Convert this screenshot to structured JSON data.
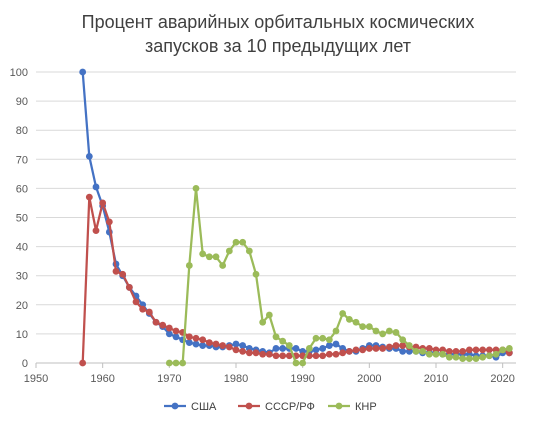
{
  "chart_data": {
    "type": "line",
    "title_lines": [
      "Процент аварийных орбитальных космических",
      "запусков за 10 предыдущих лет"
    ],
    "xlabel": "",
    "ylabel": "",
    "xlim": [
      1950,
      2022
    ],
    "ylim": [
      0,
      100
    ],
    "x_ticks": [
      1950,
      1960,
      1970,
      1980,
      1990,
      2000,
      2010,
      2020
    ],
    "y_ticks": [
      0,
      10,
      20,
      30,
      40,
      50,
      60,
      70,
      80,
      90,
      100
    ],
    "grid": "horizontal",
    "legend": "bottom",
    "series": [
      {
        "name": "США",
        "color": "#4472C4",
        "x": [
          1957,
          1958,
          1959,
          1960,
          1961,
          1962,
          1963,
          1964,
          1965,
          1966,
          1967,
          1968,
          1969,
          1970,
          1971,
          1972,
          1973,
          1974,
          1975,
          1976,
          1977,
          1978,
          1979,
          1980,
          1981,
          1982,
          1983,
          1984,
          1985,
          1986,
          1987,
          1988,
          1989,
          1990,
          1991,
          1992,
          1993,
          1994,
          1995,
          1996,
          1997,
          1998,
          1999,
          2000,
          2001,
          2002,
          2003,
          2004,
          2005,
          2006,
          2007,
          2008,
          2009,
          2010,
          2011,
          2012,
          2013,
          2014,
          2015,
          2016,
          2017,
          2018,
          2019,
          2020,
          2021
        ],
        "y": [
          100,
          71,
          60.5,
          54,
          45,
          34,
          30,
          26,
          23,
          20,
          17,
          14,
          12.5,
          10,
          9,
          8,
          7,
          6.5,
          6,
          6,
          5.5,
          5.5,
          6,
          6.5,
          6,
          5,
          4.5,
          4,
          3.5,
          5,
          5,
          5,
          5,
          4,
          4,
          4.5,
          5,
          6,
          6.5,
          5,
          4,
          4,
          5,
          6,
          6,
          5.5,
          5,
          5,
          4,
          4,
          4,
          3.5,
          3.5,
          3.5,
          3,
          3,
          3,
          3,
          3,
          2.5,
          2.5,
          2.5,
          2,
          3.5,
          3.5
        ]
      },
      {
        "name": "СССР/РФ",
        "color": "#C0504D",
        "x": [
          1957,
          1958,
          1959,
          1960,
          1961,
          1962,
          1963,
          1964,
          1965,
          1966,
          1967,
          1968,
          1969,
          1970,
          1971,
          1972,
          1973,
          1974,
          1975,
          1976,
          1977,
          1978,
          1979,
          1980,
          1981,
          1982,
          1983,
          1984,
          1985,
          1986,
          1987,
          1988,
          1989,
          1990,
          1991,
          1992,
          1993,
          1994,
          1995,
          1996,
          1997,
          1998,
          1999,
          2000,
          2001,
          2002,
          2003,
          2004,
          2005,
          2006,
          2007,
          2008,
          2009,
          2010,
          2011,
          2012,
          2013,
          2014,
          2015,
          2016,
          2017,
          2018,
          2019,
          2020,
          2021
        ],
        "y": [
          0,
          57,
          45.5,
          55,
          48.5,
          31.5,
          30.5,
          26,
          21,
          18.5,
          17.5,
          14,
          13,
          12,
          11,
          10.5,
          9,
          8.5,
          8,
          7,
          6.5,
          6,
          5.5,
          4.5,
          4,
          3.5,
          3.5,
          3,
          3,
          2.5,
          2.5,
          2.5,
          2.5,
          2.5,
          2.5,
          2.5,
          2.5,
          3,
          3,
          3.5,
          4,
          4.5,
          4.5,
          5,
          5,
          5,
          5.5,
          6,
          6,
          5.5,
          5.5,
          5,
          5,
          4.5,
          4.5,
          4,
          4,
          4,
          4.5,
          4.5,
          4.5,
          4.5,
          4.5,
          4.5,
          3.5
        ]
      },
      {
        "name": "КНР",
        "color": "#9BBB59",
        "x": [
          1970,
          1971,
          1972,
          1973,
          1974,
          1975,
          1976,
          1977,
          1978,
          1979,
          1980,
          1981,
          1982,
          1983,
          1984,
          1985,
          1986,
          1987,
          1988,
          1989,
          1990,
          1991,
          1992,
          1993,
          1994,
          1995,
          1996,
          1997,
          1998,
          1999,
          2000,
          2001,
          2002,
          2003,
          2004,
          2005,
          2006,
          2007,
          2008,
          2009,
          2010,
          2011,
          2012,
          2013,
          2014,
          2015,
          2016,
          2017,
          2018,
          2019,
          2020,
          2021
        ],
        "y": [
          0,
          0,
          0,
          33.5,
          60,
          37.5,
          36.5,
          36.5,
          33.5,
          38.5,
          41.5,
          41.5,
          38.5,
          30.5,
          14,
          16.5,
          9,
          7.5,
          6,
          0,
          0,
          5,
          8.5,
          8.5,
          8,
          11,
          17,
          15,
          14,
          12.5,
          12.5,
          11,
          10,
          11,
          10.5,
          8,
          6,
          4,
          4,
          3,
          3,
          3,
          2,
          2,
          1.5,
          1.5,
          1.5,
          2,
          2.5,
          3,
          4.5,
          5
        ]
      }
    ]
  }
}
